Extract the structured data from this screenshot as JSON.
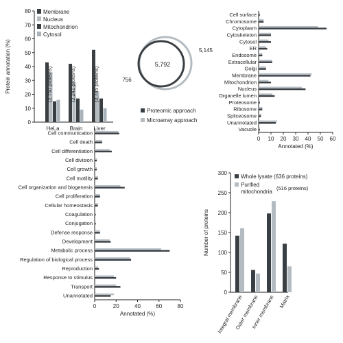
{
  "colors": {
    "dark": "#3a3f44",
    "mid": "#8e959b",
    "light": "#b4bcc2",
    "cyt": "#aab3ba",
    "axis": "#222222"
  },
  "chart_data": [
    {
      "id": "topleft",
      "type": "bar",
      "ylabel": "Protein annotation (%)",
      "ylim": [
        0,
        80
      ],
      "yticks": [
        0,
        10,
        20,
        30,
        40,
        50,
        60,
        70,
        80
      ],
      "categories": [
        "HeLa",
        "Brain",
        "Liver"
      ],
      "protein_labels": [
        "(2,750 proteins)",
        "(2,241 proteins)",
        "(2,745 proteins)"
      ],
      "legend": [
        "Membrane",
        "Nucleus",
        "Mitochondrion",
        "Cytosol"
      ],
      "series": [
        {
          "name": "Membrane",
          "values": [
            43,
            42,
            52
          ]
        },
        {
          "name": "Nucleus",
          "values": [
            36,
            29,
            22
          ]
        },
        {
          "name": "Mitochondrion",
          "values": [
            15,
            17,
            17
          ]
        },
        {
          "name": "Cytosol",
          "values": [
            16,
            9,
            10
          ]
        }
      ]
    },
    {
      "id": "venn",
      "type": "venn",
      "left_only": "756",
      "overlap": "5,792",
      "right_only": "5,145",
      "legend": [
        "Proteomic approach",
        "Microarray approach"
      ]
    },
    {
      "id": "topright",
      "type": "bar",
      "orientation": "horizontal",
      "xlabel": "Annotated (%)",
      "xlim": [
        0,
        60
      ],
      "xticks": [
        0,
        10,
        20,
        30,
        40,
        50,
        60
      ],
      "categories": [
        "Cell surface",
        "Chromosome",
        "Cytoplasm",
        "Cytoskeleton",
        "Cytosol",
        "ER",
        "Endosome",
        "Extracellular",
        "Golgi",
        "Membrane",
        "Mitochondrion",
        "Nucleus",
        "Organelle lumen",
        "Proteosome",
        "Ribosome",
        "Spliceosome",
        "Unannotated",
        "Vacuole"
      ],
      "series": [
        {
          "name": "Proteomic approach",
          "values": [
            1,
            4,
            55,
            10,
            10,
            7,
            3,
            11,
            6,
            42,
            10,
            38,
            13,
            1,
            3,
            2,
            14,
            1
          ]
        },
        {
          "name": "Microarray approach",
          "values": [
            1,
            4,
            48,
            10,
            8,
            6,
            3,
            11,
            6,
            43,
            8,
            35,
            11,
            1,
            3,
            2,
            15,
            1
          ]
        }
      ]
    },
    {
      "id": "bottomleft",
      "type": "bar",
      "orientation": "horizontal",
      "xlabel": "Annotated (%)",
      "xlim": [
        0,
        80
      ],
      "xticks": [
        0,
        20,
        40,
        60,
        80
      ],
      "categories": [
        "Cell communication",
        "Cell death",
        "Cell differentiation",
        "Cell division",
        "Cell growth",
        "Cell motility",
        "Cell organization and biogenesis",
        "Cell proliferation",
        "Cellular homeostasis",
        "Coagulation",
        "Conjugation",
        "Defense response",
        "Development",
        "Metabolic process",
        "Regulation of biological process",
        "Reproduction",
        "Response to stimulus",
        "Transport",
        "Unannotated"
      ],
      "series": [
        {
          "name": "Proteomic approach",
          "values": [
            23,
            7,
            16,
            2,
            2,
            3,
            28,
            5,
            3,
            1,
            1,
            5,
            15,
            70,
            34,
            4,
            20,
            24,
            15
          ]
        },
        {
          "name": "Microarray approach",
          "values": [
            22,
            7,
            14,
            2,
            2,
            3,
            24,
            5,
            3,
            1,
            1,
            5,
            14,
            62,
            33,
            3,
            18,
            20,
            18
          ]
        }
      ]
    },
    {
      "id": "bottomright",
      "type": "bar",
      "ylabel": "Number of proteins",
      "ylim": [
        0,
        300
      ],
      "yticks": [
        0,
        50,
        100,
        150,
        200,
        250,
        300
      ],
      "categories": [
        "Integral membrane",
        "Outer membrane",
        "Inner membrane",
        "Matrix"
      ],
      "legend": [
        {
          "name": "Whole lysate (636 proteins)",
          "line1": "Whole lysate (636 proteins)",
          "line2": ""
        },
        {
          "name": "Purified mitochondria (516 proteins)",
          "line1": "Purified",
          "line2": "mitochondria",
          "line3": "(516 proteins)"
        }
      ],
      "series": [
        {
          "name": "Whole lysate (636 proteins)",
          "values": [
            142,
            56,
            198,
            122
          ]
        },
        {
          "name": "Purified mitochondria (516 proteins)",
          "values": [
            161,
            47,
            229,
            65
          ]
        }
      ]
    }
  ]
}
